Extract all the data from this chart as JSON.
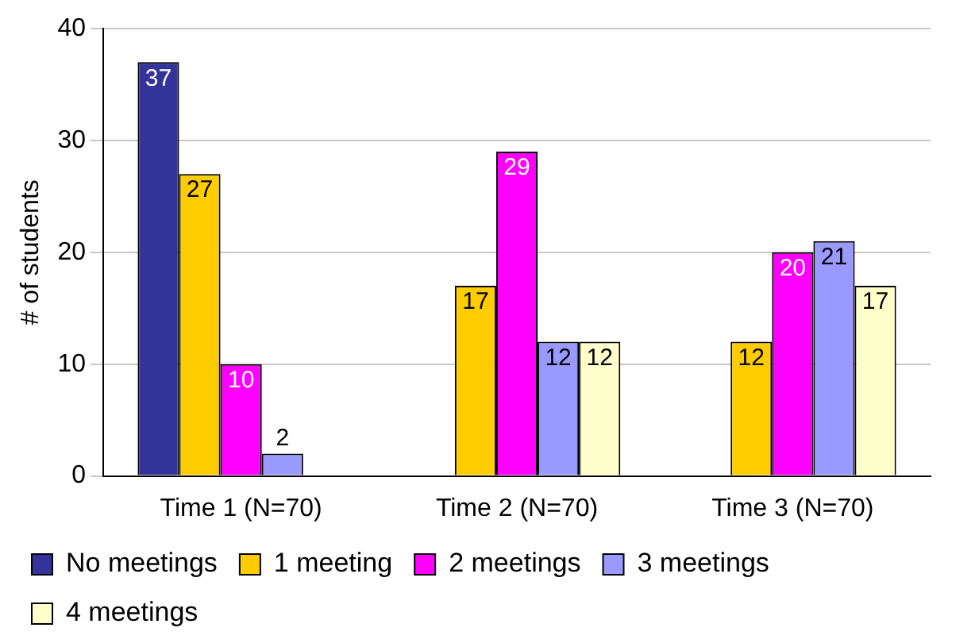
{
  "chart_data": {
    "type": "bar",
    "ylabel": "# of students",
    "categories": [
      "Time 1 (N=70)",
      "Time 2 (N=70)",
      "Time 3 (N=70)"
    ],
    "series": [
      {
        "name": "No meetings",
        "color": "#333399",
        "values": [
          37,
          null,
          null
        ]
      },
      {
        "name": "1 meeting",
        "color": "#ffcc00",
        "values": [
          27,
          17,
          12
        ]
      },
      {
        "name": "2 meetings",
        "color": "#ff00ff",
        "values": [
          10,
          29,
          20
        ]
      },
      {
        "name": "3 meetings",
        "color": "#9999ff",
        "values": [
          2,
          12,
          21
        ]
      },
      {
        "name": "4 meetings",
        "color": "#ffffcc",
        "values": [
          null,
          12,
          17
        ]
      }
    ],
    "ylim": [
      0,
      40
    ],
    "yticks": [
      0,
      10,
      20,
      30,
      40
    ],
    "grid": "y",
    "legend": "bottom",
    "data_labels": true
  }
}
